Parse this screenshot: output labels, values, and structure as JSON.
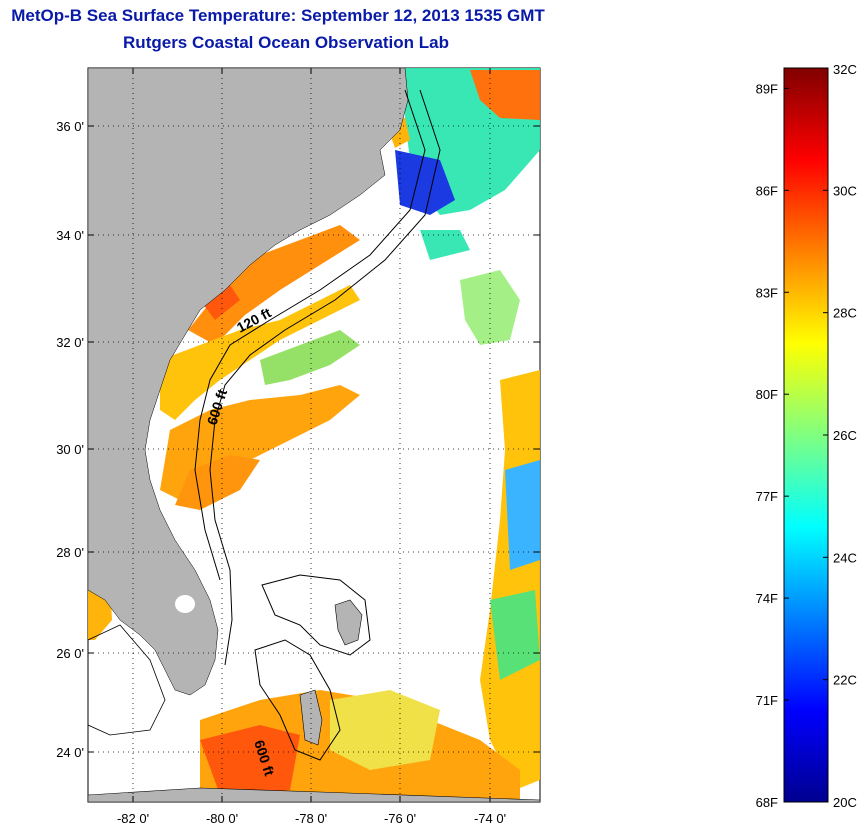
{
  "title": "MetOp-B Sea Surface Temperature:  September 12, 2013 1535 GMT",
  "subtitle": "Rutgers Coastal Ocean Observation Lab",
  "map": {
    "latitude_labels": [
      "36 0'",
      "34 0'",
      "32 0'",
      "30 0'",
      "28 0'",
      "26 0'",
      "24 0'"
    ],
    "longitude_labels": [
      "-82 0'",
      "-80 0'",
      "-78 0'",
      "-76 0'",
      "-74 0'"
    ],
    "contour_labels": [
      "120 ft",
      "600 ft",
      "600 ft"
    ],
    "colors": {
      "land": "#b4b4b4",
      "ocean_no_data": "#ffffff",
      "grid": "#000000"
    }
  },
  "colorbar": {
    "fahrenheit_labels": [
      "89F",
      "86F",
      "83F",
      "80F",
      "77F",
      "74F",
      "71F",
      "68F"
    ],
    "celsius_labels": [
      "32C",
      "30C",
      "28C",
      "26C",
      "24C",
      "22C",
      "20C"
    ],
    "min_c": 20,
    "max_c": 32,
    "colormap": [
      "#00008f",
      "#0000ff",
      "#0080ff",
      "#00ffff",
      "#80ff80",
      "#ffff00",
      "#ff8000",
      "#ff0000",
      "#800000"
    ]
  }
}
